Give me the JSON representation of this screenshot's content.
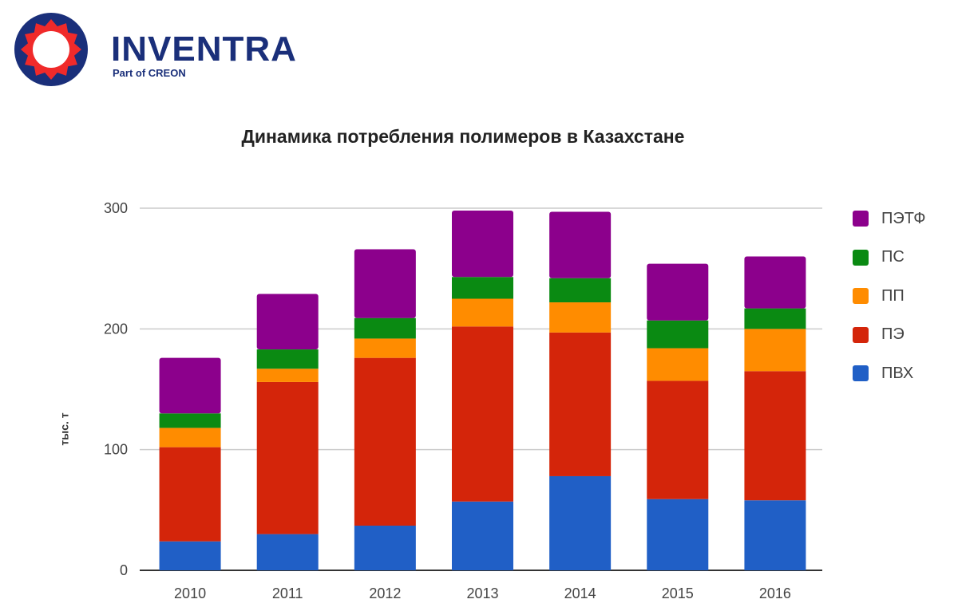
{
  "logo": {
    "brand": "INVENTRA",
    "tagline": "Part of CREON"
  },
  "chart_data": {
    "type": "bar",
    "stacked": true,
    "title": "Динамика потребления полимеров в Казахстане",
    "xlabel": "",
    "ylabel": "тыс. т",
    "ylim": [
      0,
      300
    ],
    "yticks": [
      0,
      100,
      200,
      300
    ],
    "grid": true,
    "legend_position": "right",
    "categories": [
      "2010",
      "2011",
      "2012",
      "2013",
      "2014",
      "2015",
      "2016"
    ],
    "series": [
      {
        "name": "ПВХ",
        "color": "#205fc6",
        "values": [
          24,
          30,
          37,
          57,
          78,
          59,
          58
        ]
      },
      {
        "name": "ПЭ",
        "color": "#d4250a",
        "values": [
          78,
          126,
          139,
          145,
          119,
          98,
          107
        ]
      },
      {
        "name": "ПП",
        "color": "#ff8c00",
        "values": [
          16,
          11,
          16,
          23,
          25,
          27,
          35
        ]
      },
      {
        "name": "ПС",
        "color": "#0a8a12",
        "values": [
          12,
          16,
          17,
          18,
          20,
          23,
          17
        ]
      },
      {
        "name": "ПЭТФ",
        "color": "#8c008c",
        "values": [
          46,
          46,
          57,
          55,
          55,
          47,
          43
        ]
      }
    ]
  }
}
